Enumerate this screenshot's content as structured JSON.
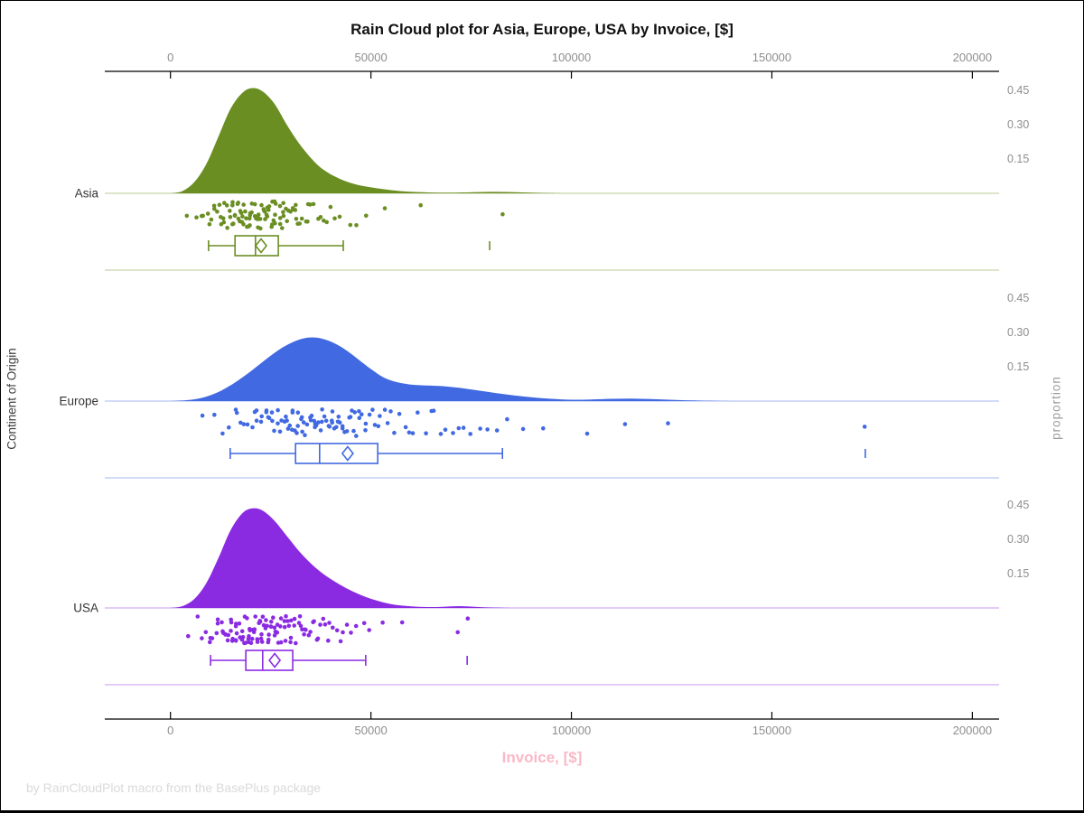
{
  "chart_data": {
    "type": "raincloud (half-violin density + jittered scatter + box plot per category)",
    "title": "Rain Cloud plot for Asia, Europe, USA by Invoice, [$]",
    "xlabel": "Invoice, [$]",
    "ylabel": "Continent of Origin",
    "y2label": "proportion",
    "footnote": "by RainCloudPlot macro from the BasePlus package",
    "legend_position": "none",
    "grid": "off",
    "x_axis": {
      "ticks": [
        0,
        50000,
        100000,
        150000,
        200000
      ],
      "tick_labels": [
        "0",
        "50000",
        "100000",
        "150000",
        "200000"
      ],
      "shown_on": [
        "top",
        "bottom"
      ],
      "range": [
        -16500,
        206500
      ]
    },
    "y2_axis": {
      "ticks_per_group": [
        0.15,
        0.3,
        0.45
      ],
      "tick_labels": [
        "0.15",
        "0.30",
        "0.45"
      ]
    },
    "accent_colors": {
      "title": "#111111",
      "tick_text": "#8e8e8e",
      "xlabel_pink": "#f9b9c7",
      "footnote_gray": "#dadada"
    },
    "groups": [
      {
        "label": "Asia",
        "color": "#6B8E23",
        "density": {
          "x": [
            0,
            3000,
            6000,
            9000,
            12000,
            15000,
            18000,
            20500,
            23000,
            26000,
            29000,
            32000,
            35000,
            38000,
            42000,
            46000,
            50000,
            54000,
            58000,
            63000,
            68000,
            74000,
            80000,
            86000,
            92000,
            98000
          ],
          "proportion": [
            0,
            0.01,
            0.05,
            0.13,
            0.25,
            0.37,
            0.44,
            0.46,
            0.445,
            0.39,
            0.3,
            0.22,
            0.155,
            0.105,
            0.065,
            0.04,
            0.026,
            0.016,
            0.009,
            0.005,
            0.003,
            0.004,
            0.0065,
            0.005,
            0.002,
            0
          ]
        },
        "box": {
          "whisker_low": 9500,
          "q1": 16100,
          "median": 21200,
          "mean": 22600,
          "q3": 26900,
          "whisker_high": 43100,
          "outliers": [
            79600
          ]
        },
        "scatter": {
          "n_points": 110,
          "seed": 11,
          "extra_points": []
        }
      },
      {
        "label": "Europe",
        "color": "#4169E1",
        "density": {
          "x": [
            0,
            4000,
            8000,
            12000,
            16000,
            20000,
            24000,
            28000,
            32000,
            35000,
            38000,
            41000,
            44000,
            47000,
            50000,
            53000,
            56000,
            60000,
            64000,
            68000,
            72000,
            76000,
            80000,
            85000,
            90000,
            95000,
            100000,
            105000,
            110000,
            115000,
            120000,
            126000,
            132000,
            140000
          ],
          "proportion": [
            0,
            0.004,
            0.015,
            0.04,
            0.08,
            0.13,
            0.185,
            0.235,
            0.268,
            0.278,
            0.272,
            0.252,
            0.22,
            0.18,
            0.14,
            0.105,
            0.085,
            0.072,
            0.068,
            0.065,
            0.058,
            0.048,
            0.038,
            0.026,
            0.017,
            0.01,
            0.006,
            0.007,
            0.01,
            0.011,
            0.009,
            0.005,
            0.002,
            0
          ]
        },
        "box": {
          "whisker_low": 14900,
          "q1": 31200,
          "median": 37200,
          "mean": 44200,
          "q3": 51700,
          "whisker_high": 82800,
          "outliers": [
            173300
          ]
        },
        "scatter": {
          "n_points": 115,
          "seed": 22,
          "extra_points": [
            173300
          ]
        }
      },
      {
        "label": "USA",
        "color": "#8A2BE2",
        "density": {
          "x": [
            0,
            3000,
            6000,
            9000,
            12000,
            15000,
            18000,
            20500,
            23000,
            26000,
            29000,
            32000,
            35000,
            38000,
            41000,
            44000,
            47000,
            50000,
            53000,
            56000,
            60000,
            64000,
            68000,
            72000,
            76000,
            80000,
            85000
          ],
          "proportion": [
            0,
            0.008,
            0.04,
            0.11,
            0.22,
            0.34,
            0.415,
            0.435,
            0.425,
            0.38,
            0.315,
            0.25,
            0.195,
            0.15,
            0.115,
            0.085,
            0.06,
            0.04,
            0.025,
            0.014,
            0.007,
            0.004,
            0.005,
            0.008,
            0.005,
            0.002,
            0
          ]
        },
        "box": {
          "whisker_low": 10000,
          "q1": 18800,
          "median": 23000,
          "mean": 26000,
          "q3": 30500,
          "whisker_high": 48700,
          "outliers": [
            74000
          ]
        },
        "scatter": {
          "n_points": 118,
          "seed": 33,
          "extra_points": [
            74000
          ]
        }
      }
    ]
  }
}
